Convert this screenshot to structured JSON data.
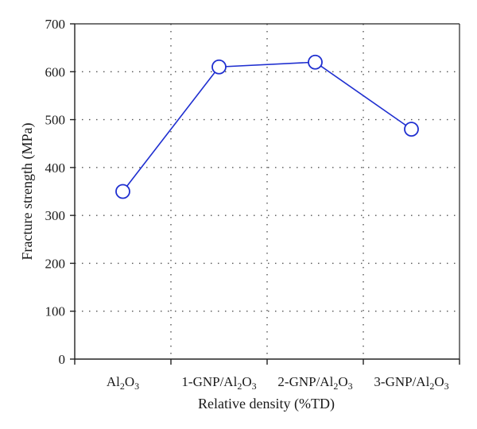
{
  "chart_data": {
    "type": "line",
    "title": "",
    "xlabel": "Relative density (%TD)",
    "ylabel": "Fracture strength (MPa)",
    "categories": [
      {
        "parts": [
          {
            "t": "Al",
            "sub": false
          },
          {
            "t": "2",
            "sub": true
          },
          {
            "t": "O",
            "sub": false
          },
          {
            "t": "3",
            "sub": true
          }
        ]
      },
      {
        "parts": [
          {
            "t": "1-GNP/Al",
            "sub": false
          },
          {
            "t": "2",
            "sub": true
          },
          {
            "t": "O",
            "sub": false
          },
          {
            "t": "3",
            "sub": true
          }
        ]
      },
      {
        "parts": [
          {
            "t": "2-GNP/Al",
            "sub": false
          },
          {
            "t": "2",
            "sub": true
          },
          {
            "t": "O",
            "sub": false
          },
          {
            "t": "3",
            "sub": true
          }
        ]
      },
      {
        "parts": [
          {
            "t": "3-GNP/Al",
            "sub": false
          },
          {
            "t": "2",
            "sub": true
          },
          {
            "t": "O",
            "sub": false
          },
          {
            "t": "3",
            "sub": true
          }
        ]
      }
    ],
    "category_text": [
      "Al2O3",
      "1-GNP/Al2O3",
      "2-GNP/Al2O3",
      "3-GNP/Al2O3"
    ],
    "series": [
      {
        "values": [
          350,
          610,
          620,
          480
        ]
      }
    ],
    "ylim": [
      0,
      700
    ],
    "yticks": [
      0,
      100,
      200,
      300,
      400,
      500,
      600,
      700
    ],
    "grid": true,
    "legend": "none",
    "colors": {
      "series": "#1f2fd0",
      "marker_fill": "#ffffff",
      "axis": "#222222",
      "grid": "#555555"
    }
  }
}
